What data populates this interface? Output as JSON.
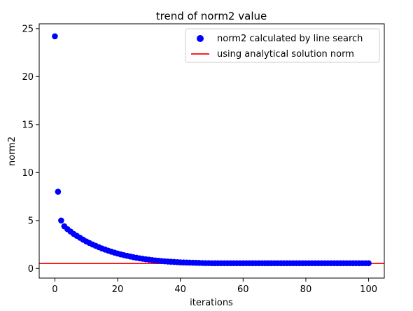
{
  "chart_data": {
    "type": "scatter",
    "title": "trend of norm2 value",
    "xlabel": "iterations",
    "ylabel": "norm2",
    "xlim": [
      -5,
      105
    ],
    "ylim": [
      -1,
      25.5
    ],
    "xticks": [
      0,
      20,
      40,
      60,
      80,
      100
    ],
    "yticks": [
      0,
      5,
      10,
      15,
      20,
      25
    ],
    "grid": false,
    "legend_position": "upper right",
    "series": [
      {
        "name": "norm2 calculated by line search",
        "kind": "scatter",
        "color": "#0000ff",
        "x": [
          0,
          1,
          2,
          3,
          4,
          5,
          6,
          7,
          8,
          9,
          10,
          11,
          12,
          13,
          14,
          15,
          16,
          17,
          18,
          19,
          20,
          21,
          22,
          23,
          24,
          25,
          26,
          27,
          28,
          29,
          30,
          31,
          32,
          33,
          34,
          35,
          36,
          37,
          38,
          39,
          40,
          41,
          42,
          43,
          44,
          45,
          46,
          47,
          48,
          49,
          50,
          51,
          52,
          53,
          54,
          55,
          56,
          57,
          58,
          59,
          60,
          61,
          62,
          63,
          64,
          65,
          66,
          67,
          68,
          69,
          70,
          71,
          72,
          73,
          74,
          75,
          76,
          77,
          78,
          79,
          80,
          81,
          82,
          83,
          84,
          85,
          86,
          87,
          88,
          89,
          90,
          91,
          92,
          93,
          94,
          95,
          96,
          97,
          98,
          99,
          100
        ],
        "y": [
          24.2,
          8.0,
          5.0,
          4.4,
          4.1,
          3.85,
          3.6,
          3.4,
          3.2,
          3.0,
          2.82,
          2.66,
          2.5,
          2.36,
          2.22,
          2.09,
          1.97,
          1.86,
          1.75,
          1.65,
          1.56,
          1.47,
          1.39,
          1.32,
          1.25,
          1.18,
          1.12,
          1.06,
          1.01,
          0.96,
          0.92,
          0.88,
          0.84,
          0.81,
          0.78,
          0.75,
          0.72,
          0.7,
          0.68,
          0.66,
          0.64,
          0.63,
          0.62,
          0.61,
          0.6,
          0.59,
          0.58,
          0.57,
          0.56,
          0.56,
          0.55,
          0.55,
          0.55,
          0.55,
          0.55,
          0.55,
          0.55,
          0.55,
          0.55,
          0.55,
          0.55,
          0.55,
          0.55,
          0.55,
          0.55,
          0.55,
          0.55,
          0.55,
          0.55,
          0.55,
          0.55,
          0.55,
          0.55,
          0.55,
          0.55,
          0.55,
          0.55,
          0.55,
          0.55,
          0.55,
          0.55,
          0.55,
          0.55,
          0.55,
          0.55,
          0.55,
          0.55,
          0.55,
          0.55,
          0.55,
          0.55,
          0.55,
          0.55,
          0.55,
          0.55,
          0.55,
          0.55,
          0.55,
          0.55,
          0.55,
          0.55
        ]
      },
      {
        "name": "using analytical solution norm",
        "kind": "hline",
        "color": "#ff0000",
        "y": 0.52
      }
    ]
  }
}
